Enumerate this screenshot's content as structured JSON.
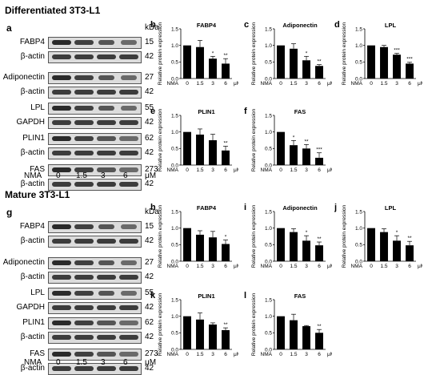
{
  "sections": [
    {
      "title": "Differentiated 3T3-L1",
      "blot_label": "a"
    },
    {
      "title": "Mature 3T3-L1",
      "blot_label": "g"
    }
  ],
  "kda_label": "kDa",
  "lane_axis": {
    "prefix": "NMA",
    "lanes": [
      "0",
      "1.5",
      "3",
      "6"
    ],
    "unit": "μM"
  },
  "blots": [
    [
      {
        "protein": "FABP4",
        "kda": "15",
        "loading": "β-actin",
        "loading_kda": "42"
      },
      {
        "protein": "Adiponectin",
        "kda": "27",
        "loading": "β-actin",
        "loading_kda": "42"
      },
      {
        "protein": "LPL",
        "kda": "55",
        "loading": "GAPDH",
        "loading_kda": "42"
      },
      {
        "protein": "PLIN1",
        "kda": "62",
        "loading": "β-actin",
        "loading_kda": "42"
      },
      {
        "protein": "FAS",
        "kda": "273",
        "loading": "β-actin",
        "loading_kda": "42"
      }
    ],
    [
      {
        "protein": "FABP4",
        "kda": "15",
        "loading": "β-actin",
        "loading_kda": "42"
      },
      {
        "protein": "Adiponectin",
        "kda": "27",
        "loading": "β-actin",
        "loading_kda": "42"
      },
      {
        "protein": "LPL",
        "kda": "55",
        "loading": "GAPDH",
        "loading_kda": "42"
      },
      {
        "protein": "PLIN1",
        "kda": "62",
        "loading": "β-actin",
        "loading_kda": "42"
      },
      {
        "protein": "FAS",
        "kda": "273",
        "loading": "β-actin",
        "loading_kda": "42"
      }
    ]
  ],
  "chart_data": [
    {
      "type": "bar",
      "panel": "b",
      "title": "FABP4",
      "ylabel": "Relative protein expression",
      "xlabel": "NMA",
      "xunit": "μM",
      "categories": [
        "0",
        "1.5",
        "3",
        "6"
      ],
      "values": [
        1.0,
        0.95,
        0.6,
        0.45
      ],
      "errors": [
        0,
        0.2,
        0.07,
        0.15
      ],
      "sig": [
        "",
        "",
        "*",
        "**"
      ],
      "ylim": [
        0,
        1.5
      ],
      "yticks": [
        "0.0",
        "0.5",
        "1.0",
        "1.5"
      ]
    },
    {
      "type": "bar",
      "panel": "c",
      "title": "Adiponectin",
      "ylabel": "Relative protein expression",
      "xlabel": "NMA",
      "xunit": "μM",
      "categories": [
        "0",
        "1.5",
        "3",
        "6"
      ],
      "values": [
        1.0,
        0.9,
        0.55,
        0.38
      ],
      "errors": [
        0,
        0.15,
        0.12,
        0.04
      ],
      "sig": [
        "",
        "",
        "*",
        "**"
      ],
      "ylim": [
        0,
        1.5
      ],
      "yticks": [
        "0.0",
        "0.5",
        "1.0",
        "1.5"
      ]
    },
    {
      "type": "bar",
      "panel": "d",
      "title": "LPL",
      "ylabel": "Relative protein expression",
      "xlabel": "NMA",
      "xunit": "μM",
      "categories": [
        "0",
        "1.5",
        "3",
        "6"
      ],
      "values": [
        1.0,
        0.95,
        0.72,
        0.45
      ],
      "errors": [
        0,
        0.05,
        0.04,
        0.04
      ],
      "sig": [
        "",
        "",
        "***",
        "***"
      ],
      "ylim": [
        0,
        1.5
      ],
      "yticks": [
        "0.0",
        "0.5",
        "1.0",
        "1.5"
      ]
    },
    {
      "type": "bar",
      "panel": "e",
      "title": "PLIN1",
      "ylabel": "Relative protein expression",
      "xlabel": "NMA",
      "xunit": "μM",
      "categories": [
        "0",
        "1.5",
        "3",
        "6"
      ],
      "values": [
        1.0,
        0.92,
        0.75,
        0.44
      ],
      "errors": [
        0,
        0.17,
        0.18,
        0.13
      ],
      "sig": [
        "",
        "",
        "",
        "**"
      ],
      "ylim": [
        0,
        1.5
      ],
      "yticks": [
        "0.0",
        "0.5",
        "1.0",
        "1.5"
      ]
    },
    {
      "type": "bar",
      "panel": "f",
      "title": "FAS",
      "ylabel": "Relative protein expression",
      "xlabel": "NMA",
      "xunit": "μM",
      "categories": [
        "0",
        "1.5",
        "3",
        "6"
      ],
      "values": [
        1.0,
        0.6,
        0.5,
        0.22
      ],
      "errors": [
        0,
        0.14,
        0.12,
        0.15
      ],
      "sig": [
        "",
        "*",
        "**",
        "***"
      ],
      "ylim": [
        0,
        1.5
      ],
      "yticks": [
        "0.0",
        "0.5",
        "1.0",
        "1.5"
      ]
    },
    {
      "type": "bar",
      "panel": "h",
      "title": "FABP4",
      "ylabel": "Relative protein expression",
      "xlabel": "NMA",
      "xunit": "μM",
      "categories": [
        "0",
        "1.5",
        "3",
        "6"
      ],
      "values": [
        1.0,
        0.8,
        0.72,
        0.52
      ],
      "errors": [
        0,
        0.12,
        0.18,
        0.12
      ],
      "sig": [
        "",
        "",
        "",
        "*"
      ],
      "ylim": [
        0,
        1.5
      ],
      "yticks": [
        "0.0",
        "0.5",
        "1.0",
        "1.5"
      ]
    },
    {
      "type": "bar",
      "panel": "i",
      "title": "Adiponectin",
      "ylabel": "Relative protein expression",
      "xlabel": "NMA",
      "xunit": "μM",
      "categories": [
        "0",
        "1.5",
        "3",
        "6"
      ],
      "values": [
        1.0,
        0.88,
        0.62,
        0.48
      ],
      "errors": [
        0,
        0.1,
        0.15,
        0.1
      ],
      "sig": [
        "",
        "",
        "*",
        "**"
      ],
      "ylim": [
        0,
        1.5
      ],
      "yticks": [
        "0.0",
        "0.5",
        "1.0",
        "1.5"
      ]
    },
    {
      "type": "bar",
      "panel": "j",
      "title": "LPL",
      "ylabel": "Relative protein expression",
      "xlabel": "NMA",
      "xunit": "μM",
      "categories": [
        "0",
        "1.5",
        "3",
        "6"
      ],
      "values": [
        1.0,
        0.88,
        0.62,
        0.48
      ],
      "errors": [
        0,
        0.1,
        0.15,
        0.12
      ],
      "sig": [
        "",
        "",
        "*",
        "**"
      ],
      "ylim": [
        0,
        1.5
      ],
      "yticks": [
        "0.0",
        "0.5",
        "1.0",
        "1.5"
      ]
    },
    {
      "type": "bar",
      "panel": "k",
      "title": "PLIN1",
      "ylabel": "Relative protein expression",
      "xlabel": "NMA",
      "xunit": "μM",
      "categories": [
        "0",
        "1.5",
        "3",
        "6"
      ],
      "values": [
        1.0,
        0.9,
        0.75,
        0.58
      ],
      "errors": [
        0,
        0.2,
        0.05,
        0.07
      ],
      "sig": [
        "",
        "",
        "",
        "**"
      ],
      "ylim": [
        0,
        1.5
      ],
      "yticks": [
        "0.0",
        "0.5",
        "1.0",
        "1.5"
      ]
    },
    {
      "type": "bar",
      "panel": "l",
      "title": "FAS",
      "ylabel": "Relative protein expression",
      "xlabel": "NMA",
      "xunit": "μM",
      "categories": [
        "0",
        "1.5",
        "3",
        "6"
      ],
      "values": [
        1.0,
        0.88,
        0.7,
        0.5
      ],
      "errors": [
        0,
        0.18,
        0.02,
        0.1
      ],
      "sig": [
        "",
        "",
        "",
        "**"
      ],
      "ylim": [
        0,
        1.5
      ],
      "yticks": [
        "0.0",
        "0.5",
        "1.0",
        "1.5"
      ]
    }
  ]
}
